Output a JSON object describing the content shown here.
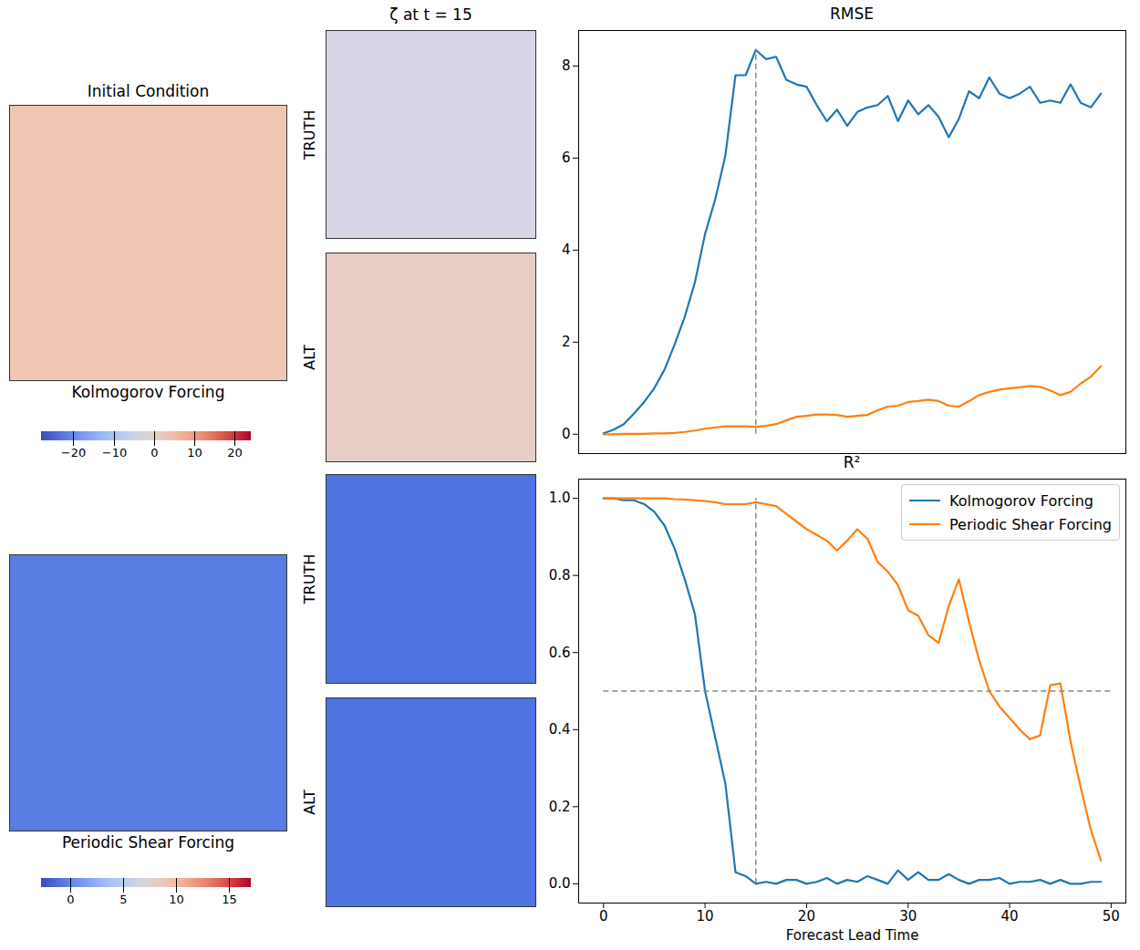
{
  "chart_data": [
    {
      "type": "line",
      "title": "RMSE",
      "tick_labels": "y",
      "x": [
        0,
        1,
        2,
        3,
        4,
        5,
        6,
        7,
        8,
        9,
        10,
        11,
        12,
        13,
        14,
        15,
        16,
        17,
        18,
        19,
        20,
        21,
        22,
        23,
        24,
        25,
        26,
        27,
        28,
        29,
        30,
        31,
        32,
        33,
        34,
        35,
        36,
        37,
        38,
        39,
        40,
        41,
        42,
        43,
        44,
        45,
        46,
        47,
        48,
        49
      ],
      "xlim": [
        -2.45,
        51.45
      ],
      "ylim": [
        -0.42,
        8.77
      ],
      "yticks": [
        0,
        2,
        4,
        6,
        8
      ],
      "series": [
        {
          "name": "Kolmogorov Forcing",
          "color": "#1f77b4",
          "values": [
            0.02,
            0.1,
            0.22,
            0.45,
            0.7,
            1.0,
            1.4,
            1.95,
            2.55,
            3.3,
            4.35,
            5.1,
            6.05,
            7.8,
            7.8,
            8.35,
            8.15,
            8.2,
            7.7,
            7.6,
            7.55,
            7.15,
            6.8,
            7.05,
            6.7,
            7.0,
            7.1,
            7.15,
            7.35,
            6.8,
            7.25,
            6.95,
            7.15,
            6.9,
            6.45,
            6.85,
            7.45,
            7.3,
            7.75,
            7.4,
            7.3,
            7.4,
            7.55,
            7.2,
            7.25,
            7.2,
            7.6,
            7.2,
            7.1,
            7.4
          ]
        },
        {
          "name": "Periodic Shear Forcing",
          "color": "#ff7f0e",
          "values": [
            0.0,
            0.0,
            0.01,
            0.01,
            0.01,
            0.02,
            0.02,
            0.03,
            0.05,
            0.08,
            0.12,
            0.15,
            0.17,
            0.17,
            0.17,
            0.16,
            0.18,
            0.22,
            0.3,
            0.38,
            0.4,
            0.43,
            0.43,
            0.42,
            0.38,
            0.4,
            0.42,
            0.52,
            0.6,
            0.62,
            0.7,
            0.72,
            0.75,
            0.72,
            0.62,
            0.6,
            0.72,
            0.85,
            0.92,
            0.97,
            1.0,
            1.02,
            1.05,
            1.03,
            0.95,
            0.85,
            0.92,
            1.1,
            1.25,
            1.48
          ]
        }
      ],
      "reference_lines": [
        {
          "x": 15,
          "y": [
            0,
            8.35
          ]
        }
      ]
    },
    {
      "type": "line",
      "title": "R²",
      "x_label": "Forecast Lead Time",
      "legend": "upper right",
      "x": [
        0,
        1,
        2,
        3,
        4,
        5,
        6,
        7,
        8,
        9,
        10,
        11,
        12,
        13,
        14,
        15,
        16,
        17,
        18,
        19,
        20,
        21,
        22,
        23,
        24,
        25,
        26,
        27,
        28,
        29,
        30,
        31,
        32,
        33,
        34,
        35,
        36,
        37,
        38,
        39,
        40,
        41,
        42,
        43,
        44,
        45,
        46,
        47,
        48,
        49
      ],
      "xlim": [
        -2.45,
        51.45
      ],
      "xticks": [
        0,
        10,
        20,
        30,
        40,
        50
      ],
      "ylim": [
        -0.05,
        1.05
      ],
      "yticks": [
        {
          "value": 0,
          "label": "0.0"
        },
        {
          "value": 0.2,
          "label": "0.2"
        },
        {
          "value": 0.4,
          "label": "0.4"
        },
        {
          "value": 0.6,
          "label": "0.6"
        },
        {
          "value": 0.8,
          "label": "0.8"
        },
        {
          "value": 1,
          "label": "1.0"
        }
      ],
      "series": [
        {
          "name": "Kolmogorov Forcing",
          "color": "#1f77b4",
          "values": [
            1.0,
            1.0,
            0.995,
            0.995,
            0.985,
            0.965,
            0.93,
            0.87,
            0.79,
            0.7,
            0.5,
            0.38,
            0.26,
            0.03,
            0.02,
            0.0,
            0.005,
            0.0,
            0.01,
            0.01,
            0.0,
            0.005,
            0.015,
            0.0,
            0.01,
            0.005,
            0.02,
            0.01,
            0.0,
            0.035,
            0.01,
            0.03,
            0.01,
            0.01,
            0.025,
            0.01,
            0.0,
            0.01,
            0.01,
            0.015,
            0.0,
            0.005,
            0.005,
            0.01,
            0.0,
            0.01,
            0.0,
            0.0,
            0.005,
            0.005
          ]
        },
        {
          "name": "Periodic Shear Forcing",
          "color": "#ff7f0e",
          "values": [
            1.0,
            1.0,
            1.0,
            1.0,
            1.0,
            1.0,
            1.0,
            0.998,
            0.997,
            0.995,
            0.993,
            0.99,
            0.985,
            0.985,
            0.985,
            0.99,
            0.985,
            0.98,
            0.96,
            0.94,
            0.92,
            0.905,
            0.89,
            0.865,
            0.89,
            0.92,
            0.895,
            0.835,
            0.81,
            0.775,
            0.71,
            0.695,
            0.645,
            0.625,
            0.72,
            0.79,
            0.68,
            0.58,
            0.5,
            0.46,
            0.43,
            0.4,
            0.375,
            0.385,
            0.515,
            0.52,
            0.37,
            0.25,
            0.14,
            0.06
          ]
        }
      ],
      "reference_lines": [
        {
          "x": 15,
          "y": [
            0,
            1.0
          ]
        },
        {
          "y": 0.5,
          "x": [
            0,
            50
          ]
        }
      ]
    }
  ],
  "fields": {
    "column_title": "ζ at t = 15",
    "rows": [
      {
        "initial_title": "Initial Condition",
        "caption": "Kolmogorov Forcing",
        "initial_color": "#eec6b3",
        "colorbar": {
          "range": [
            -28,
            24
          ],
          "ticks": [
            -20,
            -10,
            0,
            10,
            20
          ]
        },
        "panels": [
          {
            "label": "TRUTH",
            "color": "#d6d6e6"
          },
          {
            "label": "ALT",
            "color": "#e8cdc6"
          }
        ]
      },
      {
        "caption": "Periodic Shear Forcing",
        "initial_color": "#5a7de3",
        "colorbar": {
          "range": [
            -2.8,
            17.1
          ],
          "ticks": [
            0,
            5,
            10,
            15
          ]
        },
        "panels": [
          {
            "label": "TRUTH",
            "color": "#4f73e0"
          },
          {
            "label": "ALT",
            "color": "#4f73e0"
          }
        ]
      }
    ]
  }
}
